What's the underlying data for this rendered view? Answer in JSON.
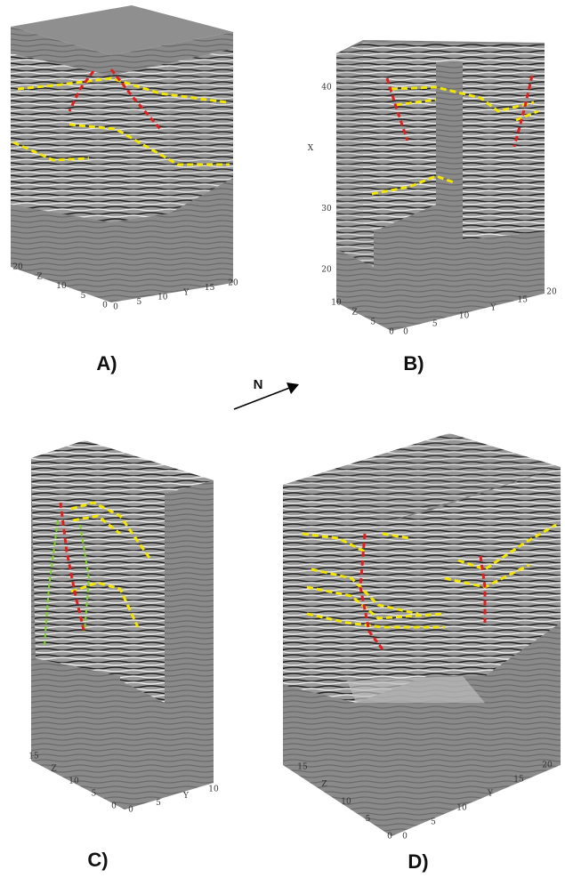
{
  "north": "N",
  "panels": [
    {
      "label": "A)",
      "z_axis": [
        "20",
        "Z",
        "10",
        "5",
        "0"
      ],
      "y_axis": [
        "0",
        "5",
        "10",
        "Y",
        "15",
        "20"
      ]
    },
    {
      "label": "B)",
      "x_axis": [
        "40",
        "X",
        "30",
        "20"
      ],
      "z_axis": [
        "10",
        "Z",
        "5",
        "0"
      ],
      "y_axis": [
        "0",
        "5",
        "10",
        "Y",
        "15",
        "20"
      ]
    },
    {
      "label": "C)",
      "z_axis": [
        "15",
        "Z",
        "10",
        "5",
        "0"
      ],
      "y_axis": [
        "0",
        "5",
        "Y",
        "10"
      ]
    },
    {
      "label": "D)",
      "z_axis": [
        "15",
        "Z",
        "10",
        "5",
        "0"
      ],
      "y_axis": [
        "0",
        "5",
        "10",
        "Y",
        "15",
        "20"
      ]
    }
  ]
}
